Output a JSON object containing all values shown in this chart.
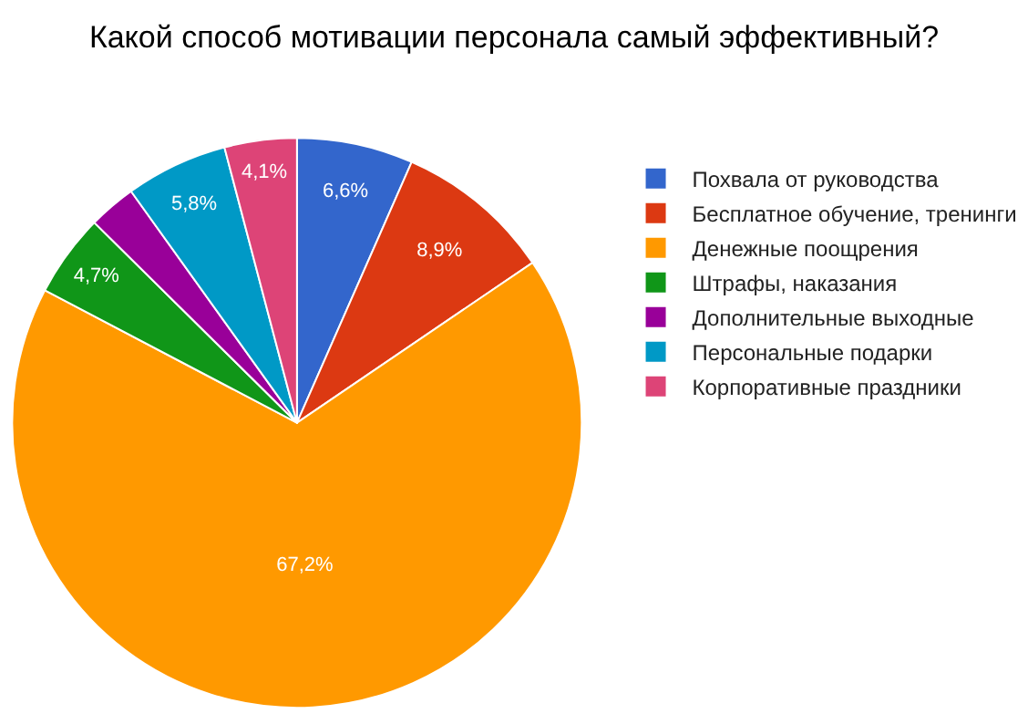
{
  "chart_data": {
    "type": "pie",
    "title": "Какой способ мотивации персонала самый эффективный?",
    "categories": [
      "Похвала от руководства",
      "Бесплатное обучение, тренинги",
      "Денежные поощрения",
      "Штрафы, наказания",
      "Дополнительные выходные",
      "Персональные подарки",
      "Корпоративные праздники"
    ],
    "values": [
      6.6,
      8.9,
      67.2,
      4.7,
      2.7,
      5.8,
      4.1
    ],
    "value_labels": [
      "6,6%",
      "8,9%",
      "67,2%",
      "4,7%",
      null,
      "5,8%",
      "4,1%"
    ],
    "colors": [
      "#3366cc",
      "#dc3912",
      "#ff9900",
      "#109618",
      "#990099",
      "#0099c6",
      "#dd4477"
    ],
    "legend": "right"
  }
}
